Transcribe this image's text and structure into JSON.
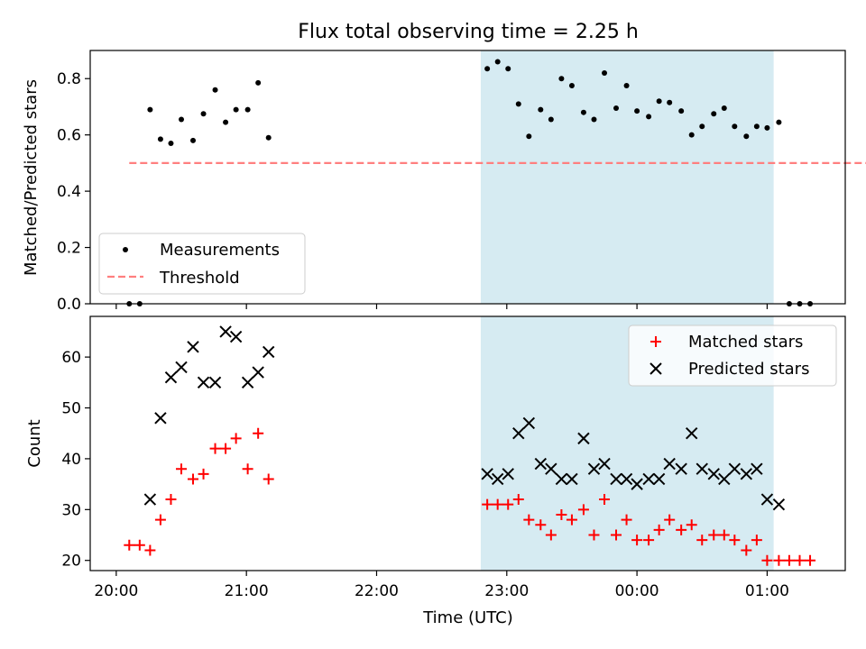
{
  "chart_data": [
    {
      "type": "scatter",
      "title": "Flux total observing time = 2.25 h",
      "ylabel": "Matched/Predicted stars",
      "xlabel": "",
      "ylim": [
        0,
        0.9
      ],
      "yticks": [
        "0.0",
        "0.2",
        "0.4",
        "0.6",
        "0.8"
      ],
      "ytick_values": [
        0,
        0.2,
        0.4,
        0.6,
        0.8
      ],
      "shaded_region_hours": [
        22.8,
        25.05
      ],
      "legend": {
        "placement": "lower-left",
        "entries": [
          "Measurements",
          "Threshold"
        ]
      },
      "threshold": {
        "name": "Threshold",
        "value": 0.5,
        "x_range": [
          20.1,
          26.3
        ],
        "color": "#ff7f7f"
      },
      "series": [
        {
          "name": "Measurements",
          "color": "#000000",
          "x": [
            20.1,
            20.18,
            20.26,
            20.34,
            20.42,
            20.5,
            20.59,
            20.67,
            20.76,
            20.84,
            20.92,
            21.01,
            21.09,
            21.17,
            22.85,
            22.93,
            23.01,
            23.09,
            23.17,
            23.26,
            23.34,
            23.42,
            23.5,
            23.59,
            23.67,
            23.75,
            23.84,
            23.92,
            24.0,
            24.09,
            24.17,
            24.25,
            24.34,
            24.42,
            24.5,
            24.59,
            24.67,
            24.75,
            24.84,
            24.92,
            25.0,
            25.09,
            25.17,
            25.25,
            25.33
          ],
          "y": [
            0.0,
            0.0,
            0.69,
            0.585,
            0.57,
            0.655,
            0.58,
            0.675,
            0.76,
            0.645,
            0.69,
            0.69,
            0.785,
            0.59,
            0.835,
            0.86,
            0.835,
            0.71,
            0.595,
            0.69,
            0.655,
            0.8,
            0.775,
            0.68,
            0.655,
            0.82,
            0.695,
            0.775,
            0.685,
            0.665,
            0.72,
            0.715,
            0.685,
            0.6,
            0.63,
            0.675,
            0.695,
            0.63,
            0.595,
            0.63,
            0.625,
            0.645,
            0.0,
            0.0,
            0.0
          ]
        }
      ]
    },
    {
      "type": "scatter",
      "title": "",
      "ylabel": "Count",
      "xlabel": "Time (UTC)",
      "ylim": [
        18,
        68
      ],
      "yticks": [
        "20",
        "30",
        "40",
        "50",
        "60"
      ],
      "ytick_values": [
        20,
        30,
        40,
        50,
        60
      ],
      "xlim_hours": [
        19.8,
        25.6
      ],
      "xticks": [
        "20:00",
        "21:00",
        "22:00",
        "23:00",
        "00:00",
        "01:00"
      ],
      "xtick_values": [
        20,
        21,
        22,
        23,
        24,
        25
      ],
      "shaded_region_hours": [
        22.8,
        25.05
      ],
      "legend": {
        "placement": "top-right",
        "entries": [
          "Matched stars",
          "Predicted stars"
        ]
      },
      "series": [
        {
          "name": "Matched stars",
          "marker": "plus",
          "color": "#ff0000",
          "x": [
            20.1,
            20.18,
            20.26,
            20.34,
            20.42,
            20.5,
            20.59,
            20.67,
            20.76,
            20.84,
            20.92,
            21.01,
            21.09,
            21.17,
            22.85,
            22.93,
            23.01,
            23.09,
            23.17,
            23.26,
            23.34,
            23.42,
            23.5,
            23.59,
            23.67,
            23.75,
            23.84,
            23.92,
            24.0,
            24.09,
            24.17,
            24.25,
            24.34,
            24.42,
            24.5,
            24.59,
            24.67,
            24.75,
            24.84,
            24.92,
            25.0,
            25.09,
            25.17,
            25.25,
            25.33
          ],
          "y": [
            23,
            23,
            22,
            28,
            32,
            38,
            36,
            37,
            42,
            42,
            44,
            38,
            45,
            36,
            31,
            31,
            31,
            32,
            28,
            27,
            25,
            29,
            28,
            30,
            25,
            32,
            25,
            28,
            24,
            24,
            26,
            28,
            26,
            27,
            24,
            25,
            25,
            24,
            22,
            24,
            20,
            20,
            20,
            20,
            20
          ]
        },
        {
          "name": "Predicted stars",
          "marker": "x",
          "color": "#000000",
          "x": [
            20.26,
            20.34,
            20.42,
            20.5,
            20.59,
            20.67,
            20.76,
            20.84,
            20.92,
            21.01,
            21.09,
            21.17,
            22.85,
            22.93,
            23.01,
            23.09,
            23.17,
            23.26,
            23.34,
            23.42,
            23.5,
            23.59,
            23.67,
            23.75,
            23.84,
            23.92,
            24.0,
            24.09,
            24.17,
            24.25,
            24.34,
            24.42,
            24.5,
            24.59,
            24.67,
            24.75,
            24.84,
            24.92,
            25.0,
            25.09
          ],
          "y": [
            32,
            48,
            56,
            58,
            62,
            55,
            55,
            65,
            64,
            55,
            57,
            61,
            37,
            36,
            37,
            45,
            47,
            39,
            38,
            36,
            36,
            44,
            38,
            39,
            36,
            36,
            35,
            36,
            36,
            39,
            38,
            45,
            38,
            37,
            36,
            38,
            37,
            38,
            32,
            31
          ]
        }
      ]
    }
  ]
}
